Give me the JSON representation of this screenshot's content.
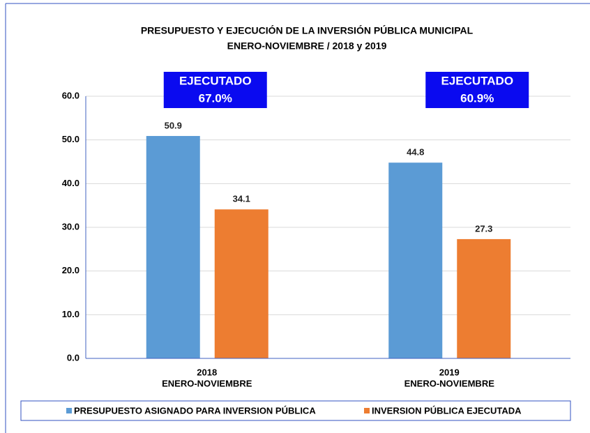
{
  "chart_data": {
    "type": "bar",
    "title": "PRESUPUESTO Y EJECUCIÓN DE LA INVERSIÓN PÚBLICA MUNICIPAL",
    "subtitle": "ENERO-NOVIEMBRE / 2018 y 2019",
    "categories": [
      [
        "2018",
        "ENERO-NOVIEMBRE"
      ],
      [
        "2019",
        "ENERO-NOVIEMBRE"
      ]
    ],
    "series": [
      {
        "name": "PRESUPUESTO ASIGNADO PARA INVERSION PÚBLICA",
        "color": "#5b9bd5",
        "values": [
          50.9,
          44.8
        ]
      },
      {
        "name": "INVERSION PÚBLICA EJECUTADA",
        "color": "#ed7d31",
        "values": [
          34.1,
          27.3
        ]
      }
    ],
    "annotations": [
      [
        "EJECUTADO",
        "67.0%"
      ],
      [
        "EJECUTADO",
        "60.9%"
      ]
    ],
    "annotation_color": "#0a0af0",
    "ylim": [
      0,
      60
    ],
    "yticks": [
      {
        "value": 0,
        "label": "0.0"
      },
      {
        "value": 10,
        "label": "10.0"
      },
      {
        "value": 20,
        "label": "20.0"
      },
      {
        "value": 30,
        "label": "30.0"
      },
      {
        "value": 40,
        "label": "40.0"
      },
      {
        "value": 50,
        "label": "50.0"
      },
      {
        "value": 60,
        "label": "60.0"
      }
    ],
    "grid": true,
    "legend": "bottom"
  }
}
